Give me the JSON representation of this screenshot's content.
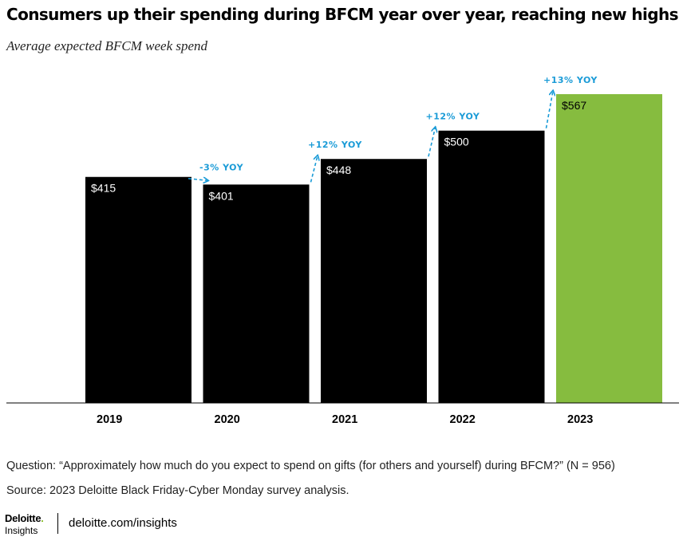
{
  "header": {
    "title": "Consumers up their spending during BFCM year over year, reaching new highs",
    "subtitle": "Average expected BFCM week spend"
  },
  "chart_data": {
    "type": "bar",
    "categories": [
      "2019",
      "2020",
      "2021",
      "2022",
      "2023"
    ],
    "values": [
      415,
      401,
      448,
      500,
      567
    ],
    "value_labels": [
      "$415",
      "$401",
      "$448",
      "$500",
      "$567"
    ],
    "yoy_annotations": [
      "-3% YOY",
      "+12% YOY",
      "+12% YOY",
      "+13% YOY"
    ],
    "ylim": [
      0,
      567
    ],
    "grid": false,
    "legend": "none",
    "colors": {
      "bar": "#000000",
      "highlight_bar": "#86bc3f",
      "annotation": "#1a9bd7",
      "label_on_dark": "#ffffff",
      "label_on_highlight": "#000000"
    }
  },
  "notes": {
    "question": "Question: “Approximately how much do you expect to spend on gifts (for others and yourself) during BFCM?” (N = 956)",
    "source": "Source: 2023 Deloitte Black Friday-Cyber Monday survey analysis."
  },
  "footer": {
    "logo_name": "Deloitte",
    "logo_dot": ".",
    "logo_sub": "Insights",
    "url": "deloitte.com/insights"
  }
}
